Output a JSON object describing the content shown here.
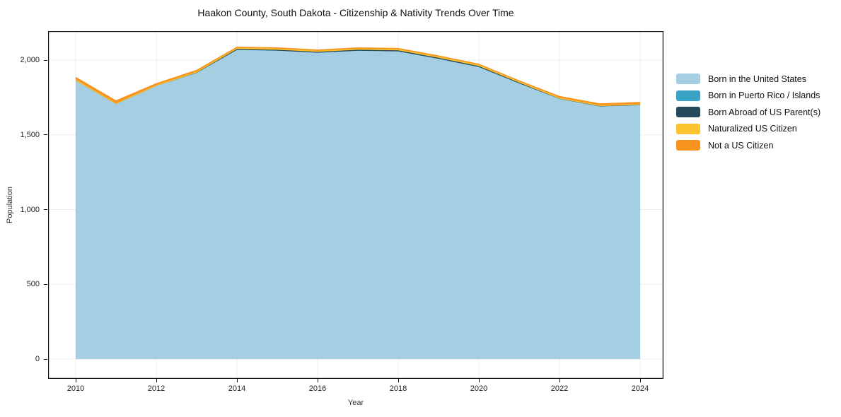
{
  "header": {
    "title": "Haakon County, South Dakota - Citizenship & Nativity Trends Over Time"
  },
  "chart_data": {
    "type": "area",
    "stacked": true,
    "title": "Haakon County, South Dakota - Citizenship & Nativity Trends Over Time",
    "xlabel": "Year",
    "ylabel": "Population",
    "grid": true,
    "legend_position": "right",
    "x": [
      2010,
      2011,
      2012,
      2013,
      2014,
      2015,
      2016,
      2017,
      2018,
      2019,
      2020,
      2021,
      2022,
      2023,
      2024
    ],
    "series": [
      {
        "name": "Born in the United States",
        "color": "#a6cee3",
        "values": [
          1862,
          1705,
          1826,
          1914,
          2068,
          2063,
          2049,
          2062,
          2058,
          2008,
          1953,
          1844,
          1740,
          1690,
          1698
        ]
      },
      {
        "name": "Born in Puerto Rico / Islands",
        "color": "#38a3c5",
        "values": [
          0,
          0,
          0,
          0,
          0,
          0,
          0,
          0,
          0,
          0,
          0,
          0,
          0,
          0,
          0
        ]
      },
      {
        "name": "Born Abroad of US Parent(s)",
        "color": "#254a5c",
        "values": [
          0,
          0,
          0,
          2,
          6,
          6,
          6,
          7,
          7,
          7,
          7,
          5,
          2,
          2,
          2
        ]
      },
      {
        "name": "Naturalized US Citizen",
        "color": "#fcc32f",
        "values": [
          8,
          6,
          6,
          7,
          8,
          8,
          8,
          8,
          8,
          8,
          8,
          8,
          7,
          6,
          7
        ]
      },
      {
        "name": "Not a US Citizen",
        "color": "#f7941f",
        "values": [
          18,
          20,
          14,
          12,
          8,
          8,
          8,
          8,
          8,
          8,
          8,
          8,
          11,
          12,
          13
        ]
      }
    ],
    "totals": [
      1888,
      1731,
      1846,
      1935,
      2090,
      2085,
      2071,
      2085,
      2081,
      2031,
      1976,
      1865,
      1760,
      1710,
      1720
    ],
    "xticks": [
      2010,
      2012,
      2014,
      2016,
      2018,
      2020,
      2022,
      2024
    ],
    "yticks": [
      0,
      500,
      1000,
      1500,
      2000
    ],
    "ytick_labels": [
      "0",
      "500",
      "1,000",
      "1,500",
      "2,000"
    ],
    "ylim": [
      0,
      2000
    ]
  }
}
